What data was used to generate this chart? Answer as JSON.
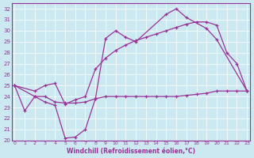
{
  "xlabel": "Windchill (Refroidissement éolien,°C)",
  "bg_color": "#cce8f0",
  "line_color": "#993399",
  "xlim_min": -0.3,
  "xlim_max": 23.3,
  "ylim_min": 20,
  "ylim_max": 32.5,
  "yticks": [
    20,
    21,
    22,
    23,
    24,
    25,
    26,
    27,
    28,
    29,
    30,
    31,
    32
  ],
  "xticks": [
    0,
    1,
    2,
    3,
    4,
    5,
    6,
    7,
    8,
    9,
    10,
    11,
    12,
    13,
    14,
    15,
    16,
    17,
    18,
    19,
    20,
    21,
    22,
    23
  ],
  "curve1_x": [
    0,
    1,
    2,
    3,
    4,
    5,
    6,
    7,
    8,
    9,
    10,
    11,
    12,
    15,
    16,
    17,
    19,
    20,
    23
  ],
  "curve1_y": [
    25.0,
    22.7,
    24.0,
    23.5,
    23.2,
    20.2,
    20.3,
    21.0,
    23.8,
    29.3,
    30.0,
    29.4,
    29.0,
    31.5,
    32.0,
    31.2,
    30.2,
    29.2,
    24.5
  ],
  "curve2_x": [
    0,
    2,
    3,
    4,
    5,
    6,
    7,
    8,
    9,
    10,
    11,
    12,
    13,
    14,
    15,
    16,
    17,
    18,
    19,
    20,
    21,
    22,
    23
  ],
  "curve2_y": [
    25.0,
    24.5,
    25.0,
    25.2,
    23.3,
    23.7,
    24.0,
    26.5,
    27.5,
    28.2,
    28.7,
    29.1,
    29.4,
    29.7,
    30.0,
    30.3,
    30.6,
    30.8,
    30.8,
    30.5,
    28.0,
    27.0,
    24.5
  ],
  "curve3_x": [
    0,
    2,
    3,
    4,
    5,
    6,
    7,
    8,
    9,
    10,
    11,
    12,
    13,
    14,
    15,
    16,
    17,
    18,
    19,
    20,
    21,
    22,
    23
  ],
  "curve3_y": [
    25.0,
    24.0,
    24.0,
    23.5,
    23.4,
    23.4,
    23.5,
    23.8,
    24.0,
    24.0,
    24.0,
    24.0,
    24.0,
    24.0,
    24.0,
    24.0,
    24.1,
    24.2,
    24.3,
    24.5,
    24.5,
    24.5,
    24.5
  ]
}
